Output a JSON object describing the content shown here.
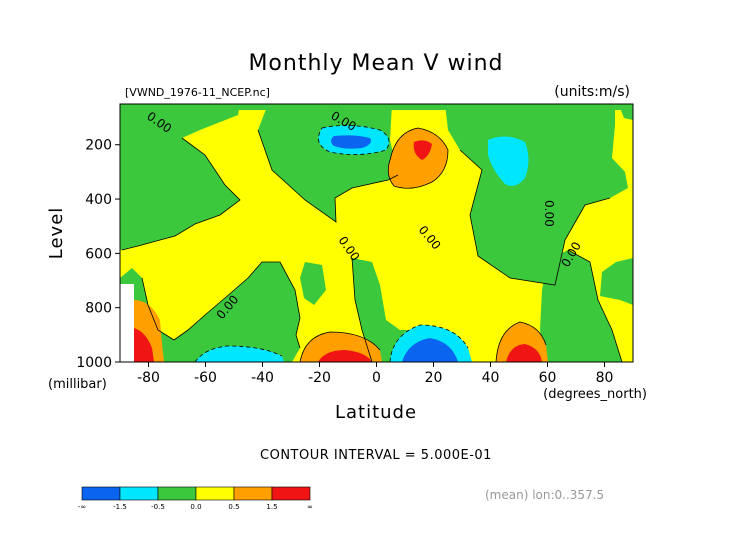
{
  "figure": {
    "title": "Monthly Mean V wind",
    "source_label": "[VWND_1976-11_NCEP.nc]",
    "units_label": "(units:m/s)",
    "x_axis_title": "Latitude",
    "x_axis_unit": "(degrees_north)",
    "y_axis_title": "Level",
    "y_axis_unit": "(millibar)",
    "contour_interval_text": "CONTOUR INTERVAL = 5.000E-01",
    "footnote": "(mean) lon:0..357.5",
    "contour_line_label": "0.00"
  },
  "chart_data": {
    "type": "heatmap",
    "title": "Monthly Mean V wind",
    "xlabel": "Latitude",
    "ylabel": "Level",
    "x_unit": "degrees_north",
    "y_unit": "millibar",
    "xlim": [
      -90,
      90
    ],
    "ylim": [
      1000,
      50
    ],
    "y_reversed": true,
    "x_ticks": [
      -80,
      -60,
      -40,
      -20,
      0,
      20,
      40,
      60,
      80
    ],
    "y_ticks": [
      200,
      400,
      600,
      800,
      1000
    ],
    "x_tick_labels": [
      "-80",
      "-60",
      "-40",
      "-20",
      "0",
      "20",
      "40",
      "60",
      "80"
    ],
    "y_tick_labels": [
      "200",
      "400",
      "600",
      "800",
      "1000"
    ],
    "contour_interval": 0.5,
    "colorbar": {
      "colors": [
        "#0a64f0",
        "#00e6ff",
        "#3cc83c",
        "#ffff00",
        "#ffa000",
        "#f01414"
      ],
      "tick_labels": [
        "-∞",
        "-1.5",
        "-0.5",
        "0.0",
        "0.5",
        "1.5",
        "∞"
      ]
    },
    "features": [
      {
        "lat": -86,
        "lev": 960,
        "value": 2.0,
        "color": "#f01414"
      },
      {
        "lat": -83,
        "lev": 880,
        "value": 1.0,
        "color": "#ffa000"
      },
      {
        "lat": -56,
        "lev": 990,
        "value": -1.0,
        "color": "#00e6ff"
      },
      {
        "lat": -14,
        "lev": 990,
        "value": 2.0,
        "color": "#f01414"
      },
      {
        "lat": -12,
        "lev": 955,
        "value": 1.0,
        "color": "#ffa000"
      },
      {
        "lat": 3,
        "lev": 180,
        "value": -1.6,
        "color": "#0a64f0"
      },
      {
        "lat": 3,
        "lev": 180,
        "value": -1.0,
        "color": "#00e6ff"
      },
      {
        "lat": 18,
        "lev": 180,
        "value": 2.0,
        "color": "#f01414"
      },
      {
        "lat": 18,
        "lev": 200,
        "value": 1.0,
        "color": "#ffa000"
      },
      {
        "lat": 18,
        "lev": 960,
        "value": -2.0,
        "color": "#0a64f0"
      },
      {
        "lat": 18,
        "lev": 940,
        "value": -1.0,
        "color": "#00e6ff"
      },
      {
        "lat": 48,
        "lev": 970,
        "value": 2.0,
        "color": "#f01414"
      },
      {
        "lat": 48,
        "lev": 950,
        "value": 1.0,
        "color": "#ffa000"
      },
      {
        "lat": 50,
        "lev": 220,
        "value": -1.0,
        "color": "#00e6ff"
      }
    ]
  }
}
